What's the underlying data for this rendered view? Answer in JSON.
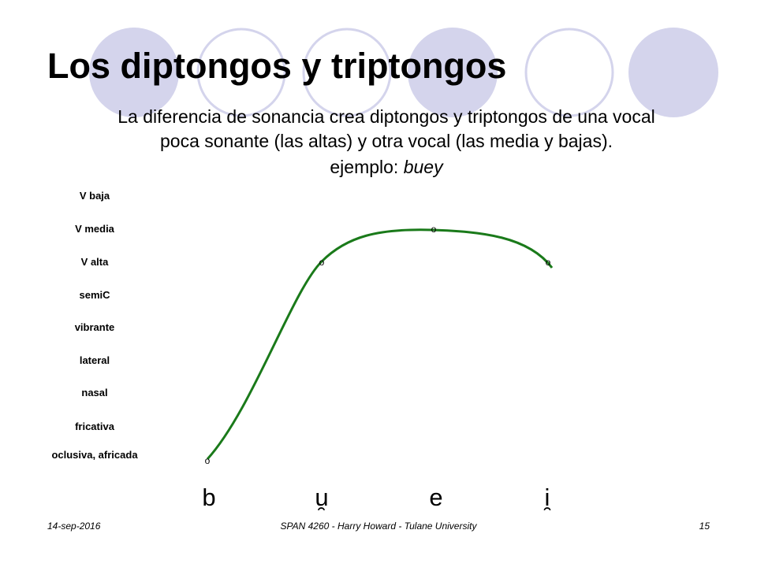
{
  "slide": {
    "title": "Los diptongos y triptongos",
    "subtitle_line1": "La diferencia de sonancia crea diptongos y triptongos de una vocal",
    "subtitle_line2": "poca sonante (las altas) y otra vocal (las media y bajas).",
    "example_prefix": "ejemplo: ",
    "example_word": "buey"
  },
  "diagram": {
    "sonority_levels": [
      "V baja",
      "V media",
      "V alta",
      "semiC",
      "vibrante",
      "lateral",
      "nasal",
      "fricativa",
      "oclusiva, africada"
    ],
    "segments": [
      {
        "symbol": "b",
        "level": "oclusiva, africada",
        "marker": "o"
      },
      {
        "symbol": "u",
        "level": "V alta",
        "marker": "o",
        "nonsyllabic_mark": "̯"
      },
      {
        "symbol": "e",
        "level": "V media",
        "marker": "o"
      },
      {
        "symbol": "i",
        "level": "V alta",
        "marker": "o",
        "nonsyllabic_mark": "̯"
      }
    ],
    "curve_color": "#1a7a1a"
  },
  "footer": {
    "date": "14-sep-2016",
    "course": "SPAN 4260 - Harry Howard - Tulane University",
    "page": "15"
  },
  "theme": {
    "circle_fill": "#d4d4ec",
    "circle_outline": "#d4d4ec"
  }
}
